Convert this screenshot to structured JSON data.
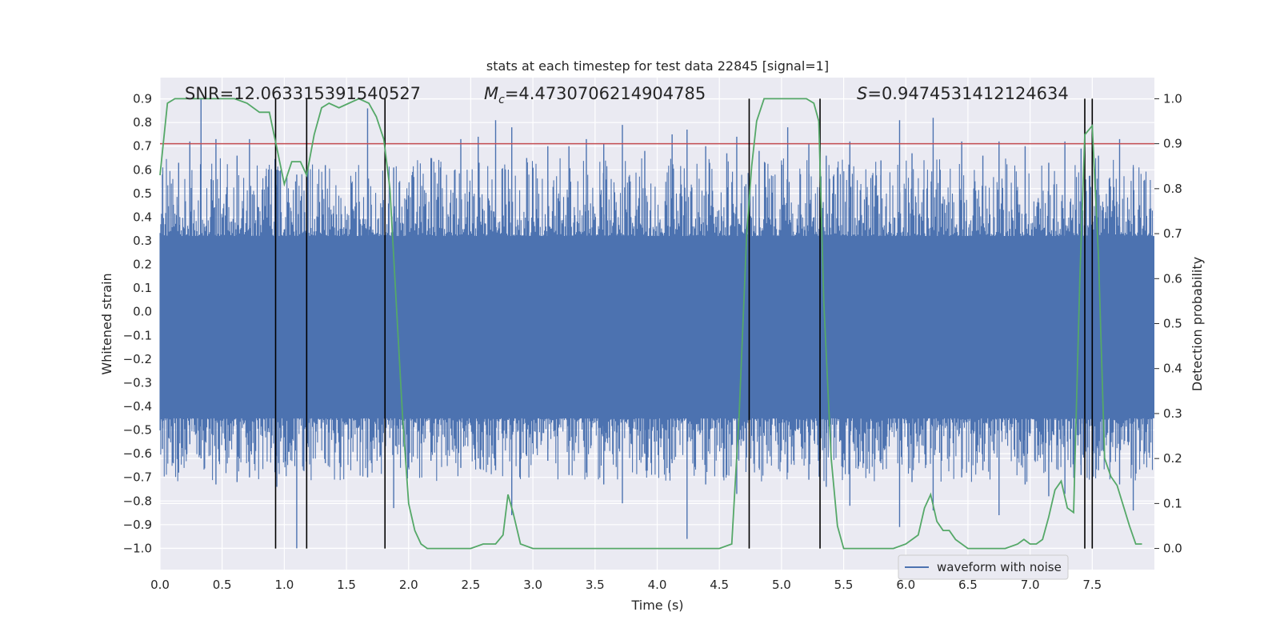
{
  "chart_data": {
    "type": "line",
    "title": "stats at each timestep for test data 22845 [signal=1]",
    "xlabel": "Time (s)",
    "ylabel": "Whitened strain",
    "y2label": "Detection probability",
    "xlim": [
      0.0,
      8.0
    ],
    "ylim": [
      -1.09,
      0.99
    ],
    "y2lim": [
      -0.047,
      1.047
    ],
    "grid": true,
    "legend_position": "lower-right",
    "x_ticks": [
      "0.0",
      "0.5",
      "1.0",
      "1.5",
      "2.0",
      "2.5",
      "3.0",
      "3.5",
      "4.0",
      "4.5",
      "5.0",
      "5.5",
      "6.0",
      "6.5",
      "7.0",
      "7.5"
    ],
    "y_ticks": [
      "0.9",
      "0.8",
      "0.7",
      "0.6",
      "0.5",
      "0.4",
      "0.3",
      "0.2",
      "0.1",
      "0.0",
      "−0.1",
      "−0.2",
      "−0.3",
      "−0.4",
      "−0.5",
      "−0.6",
      "−0.7",
      "−0.8",
      "−0.9",
      "−1.0"
    ],
    "y2_ticks": [
      "1.0",
      "0.9",
      "0.8",
      "0.7",
      "0.6",
      "0.5",
      "0.4",
      "0.3",
      "0.2",
      "0.1",
      "0.0"
    ],
    "annotations": {
      "snr": "SNR=12.063315391540527",
      "mc_symbol": "M",
      "mc_sub": "c",
      "mc_value": "=4.4730706214904785",
      "s_symbol": "S",
      "s_value": "=0.9474531412124634"
    },
    "threshold": 0.9,
    "detection_boundaries": [
      0.93,
      1.18,
      1.81,
      4.74,
      5.31,
      7.44,
      7.5
    ],
    "series": [
      {
        "name": "waveform with noise",
        "color": "#4c72b0",
        "band_low": -0.45,
        "band_high": 0.32,
        "peaks_x": [
          0.02,
          0.15,
          0.24,
          0.33,
          0.45,
          0.62,
          0.72,
          0.94,
          1.1,
          1.33,
          1.67,
          1.88,
          2.18,
          2.42,
          2.56,
          2.7,
          2.83,
          2.95,
          3.12,
          3.29,
          3.43,
          3.57,
          3.72,
          3.9,
          4.12,
          4.24,
          4.39,
          4.56,
          4.64,
          4.82,
          5.05,
          5.22,
          5.36,
          5.55,
          5.8,
          5.95,
          6.05,
          6.22,
          6.45,
          6.62,
          6.75,
          6.96,
          7.15,
          7.28,
          7.41,
          7.55,
          7.72,
          7.83,
          7.92
        ],
        "peaks_top": [
          0.58,
          0.63,
          0.72,
          0.9,
          0.73,
          0.66,
          0.73,
          0.6,
          0.58,
          0.62,
          0.86,
          0.61,
          0.65,
          0.73,
          0.74,
          0.81,
          0.78,
          0.65,
          0.7,
          0.7,
          0.73,
          0.71,
          0.79,
          0.68,
          0.75,
          0.77,
          0.7,
          0.67,
          0.74,
          0.68,
          0.78,
          0.71,
          0.66,
          0.72,
          0.64,
          0.81,
          0.67,
          0.82,
          0.72,
          0.66,
          0.72,
          0.7,
          0.63,
          0.72,
          0.69,
          0.66,
          0.73,
          0.61,
          0.55
        ],
        "peaks_bottom": [
          -0.58,
          -0.68,
          -0.56,
          -0.62,
          -0.73,
          -0.72,
          -0.7,
          -0.74,
          -1.0,
          -0.64,
          -0.7,
          -0.83,
          -0.63,
          -0.66,
          -0.62,
          -0.67,
          -0.86,
          -0.61,
          -0.63,
          -0.69,
          -0.68,
          -0.73,
          -0.81,
          -0.6,
          -0.64,
          -0.96,
          -0.73,
          -0.69,
          -0.77,
          -0.66,
          -0.68,
          -0.71,
          -0.74,
          -0.82,
          -0.64,
          -0.91,
          -0.72,
          -0.84,
          -0.7,
          -0.67,
          -0.86,
          -0.73,
          -0.78,
          -0.77,
          -0.69,
          -0.67,
          -0.73,
          -0.84,
          -0.6
        ]
      },
      {
        "name": "detection probability",
        "color": "#55a868",
        "axis": "right",
        "x": [
          0.0,
          0.06,
          0.12,
          0.2,
          0.3,
          0.4,
          0.5,
          0.6,
          0.7,
          0.8,
          0.88,
          0.94,
          1.0,
          1.06,
          1.13,
          1.18,
          1.24,
          1.3,
          1.36,
          1.44,
          1.52,
          1.6,
          1.68,
          1.74,
          1.8,
          1.85,
          1.9,
          1.95,
          2.0,
          2.05,
          2.1,
          2.15,
          2.3,
          2.5,
          2.6,
          2.7,
          2.76,
          2.8,
          2.84,
          2.9,
          3.0,
          3.2,
          3.4,
          3.6,
          3.8,
          4.0,
          4.2,
          4.4,
          4.5,
          4.6,
          4.66,
          4.72,
          4.76,
          4.8,
          4.86,
          4.92,
          5.0,
          5.1,
          5.2,
          5.26,
          5.3,
          5.34,
          5.4,
          5.45,
          5.5,
          5.6,
          5.8,
          5.9,
          6.0,
          6.1,
          6.15,
          6.2,
          6.25,
          6.3,
          6.35,
          6.4,
          6.5,
          6.6,
          6.8,
          6.9,
          6.95,
          7.0,
          7.05,
          7.1,
          7.15,
          7.2,
          7.25,
          7.3,
          7.35,
          7.4,
          7.44,
          7.5,
          7.55,
          7.6,
          7.65,
          7.7,
          7.8,
          7.85,
          7.9
        ],
        "y": [
          0.83,
          0.99,
          1.0,
          1.0,
          1.0,
          1.0,
          1.0,
          1.0,
          0.99,
          0.97,
          0.97,
          0.89,
          0.81,
          0.86,
          0.86,
          0.83,
          0.92,
          0.98,
          0.99,
          0.98,
          0.99,
          1.0,
          0.99,
          0.96,
          0.91,
          0.8,
          0.55,
          0.3,
          0.1,
          0.04,
          0.01,
          0.0,
          0.0,
          0.0,
          0.01,
          0.01,
          0.03,
          0.12,
          0.08,
          0.01,
          0.0,
          0.0,
          0.0,
          0.0,
          0.0,
          0.0,
          0.0,
          0.0,
          0.0,
          0.01,
          0.3,
          0.7,
          0.85,
          0.95,
          1.0,
          1.0,
          1.0,
          1.0,
          1.0,
          0.99,
          0.95,
          0.55,
          0.2,
          0.05,
          0.0,
          0.0,
          0.0,
          0.0,
          0.01,
          0.03,
          0.09,
          0.12,
          0.06,
          0.04,
          0.04,
          0.02,
          0.0,
          0.0,
          0.0,
          0.01,
          0.02,
          0.01,
          0.01,
          0.02,
          0.07,
          0.13,
          0.15,
          0.09,
          0.08,
          0.6,
          0.92,
          0.94,
          0.65,
          0.2,
          0.16,
          0.14,
          0.05,
          0.01,
          0.01
        ]
      }
    ]
  }
}
